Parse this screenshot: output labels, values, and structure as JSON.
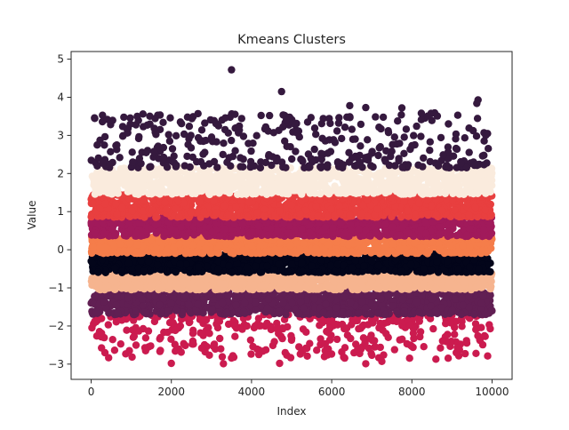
{
  "chart_data": {
    "type": "scatter",
    "title": "Kmeans Clusters",
    "xlabel": "Index",
    "ylabel": "Value",
    "xlim": [
      -500,
      10500
    ],
    "ylim": [
      -3.4,
      5.2
    ],
    "x_ticks": [
      0,
      2000,
      4000,
      6000,
      8000,
      10000
    ],
    "y_ticks": [
      -3,
      -2,
      -1,
      0,
      1,
      2,
      3,
      4,
      5
    ],
    "grid": false,
    "legend": "none",
    "n_points": 10000,
    "series": [
      {
        "value_range": [
          -3.0,
          -1.7
        ],
        "color": "#cb1b4f"
      },
      {
        "value_range": [
          -1.7,
          -1.05
        ],
        "color": "#611f53"
      },
      {
        "value_range": [
          -1.05,
          -0.6
        ],
        "color": "#f6b48f"
      },
      {
        "value_range": [
          -0.6,
          -0.1
        ],
        "color": "#03051a"
      },
      {
        "value_range": [
          -0.1,
          0.35
        ],
        "color": "#f57d4a"
      },
      {
        "value_range": [
          0.35,
          0.85
        ],
        "color": "#a11a5b"
      },
      {
        "value_range": [
          0.85,
          1.45
        ],
        "color": "#e83f3f"
      },
      {
        "value_range": [
          1.45,
          2.15
        ],
        "color": "#faebdd"
      },
      {
        "value_range": [
          2.15,
          4.72
        ],
        "color": "#35193e"
      }
    ],
    "outliers": [
      {
        "x": 3500,
        "y": 4.72
      },
      {
        "x": 4750,
        "y": 4.15
      },
      {
        "x": 9650,
        "y": 3.93
      },
      {
        "x": 9620,
        "y": 3.84
      },
      {
        "x": 400,
        "y": 3.42
      },
      {
        "x": 4450,
        "y": 3.52
      },
      {
        "x": 7750,
        "y": 3.72
      },
      {
        "x": 6450,
        "y": 3.78
      },
      {
        "x": 6850,
        "y": 3.73
      },
      {
        "x": 5400,
        "y": 3.35
      },
      {
        "x": 1400,
        "y": 3.27
      },
      {
        "x": 8500,
        "y": 3.39
      },
      {
        "x": 2000,
        "y": -2.98
      },
      {
        "x": 3300,
        "y": -2.99
      },
      {
        "x": 4700,
        "y": -2.98
      },
      {
        "x": 6850,
        "y": -2.99
      },
      {
        "x": 7250,
        "y": -2.93
      },
      {
        "x": 3500,
        "y": -2.84
      },
      {
        "x": 8600,
        "y": -2.87
      },
      {
        "x": 5900,
        "y": -2.76
      },
      {
        "x": 2100,
        "y": -2.66
      },
      {
        "x": 9600,
        "y": -2.72
      }
    ]
  }
}
